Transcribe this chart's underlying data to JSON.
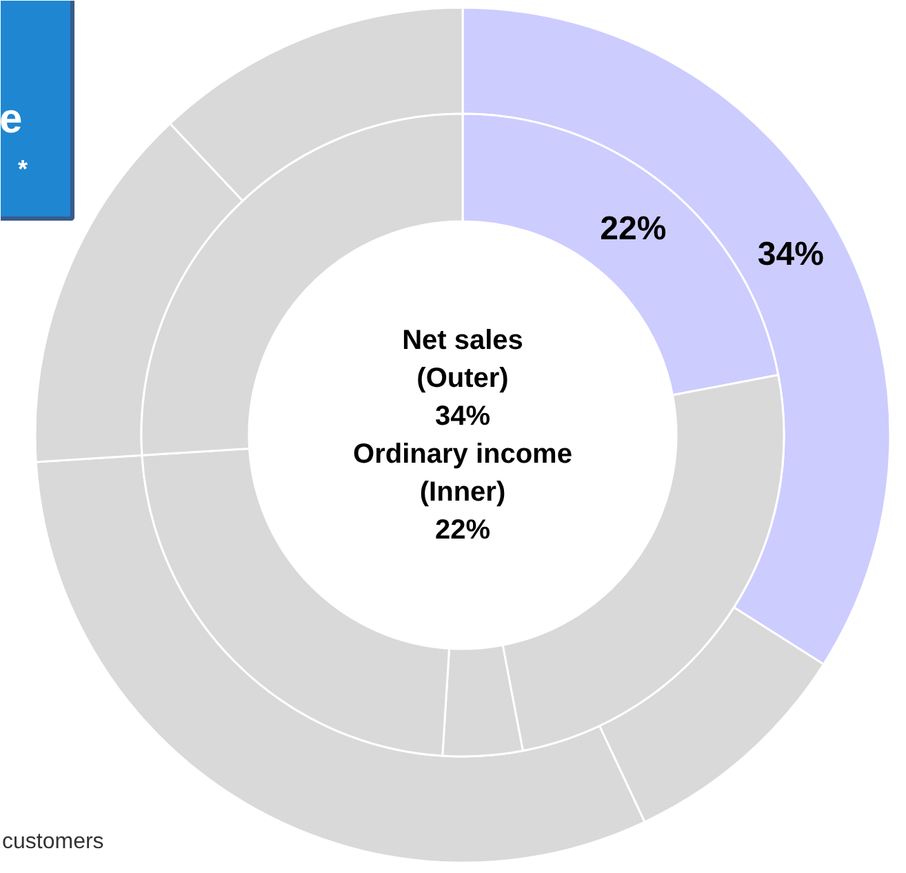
{
  "chart_data": {
    "type": "donut",
    "categories": [
      null,
      null,
      null,
      null,
      null
    ],
    "series": [
      {
        "values": [
          34,
          9,
          31,
          14,
          12
        ],
        "colors": [
          "#ccccff",
          "#d9d9d9",
          "#d9d9d9",
          "#d9d9d9",
          "#d9d9d9"
        ],
        "value_labels": [
          "34%",
          null,
          null,
          null,
          null
        ]
      },
      {
        "values": [
          22,
          25,
          4,
          23,
          26
        ],
        "colors": [
          "#ccccff",
          "#d9d9d9",
          "#d9d9d9",
          "#d9d9d9",
          "#d9d9d9"
        ],
        "value_labels": [
          "22%",
          null,
          null,
          null,
          null
        ]
      }
    ],
    "annotations": [
      "Net sales\n(Outer)\n34%\nOrdinary income\n(Inner)\n22%",
      "e",
      "*",
      "customers"
    ]
  }
}
